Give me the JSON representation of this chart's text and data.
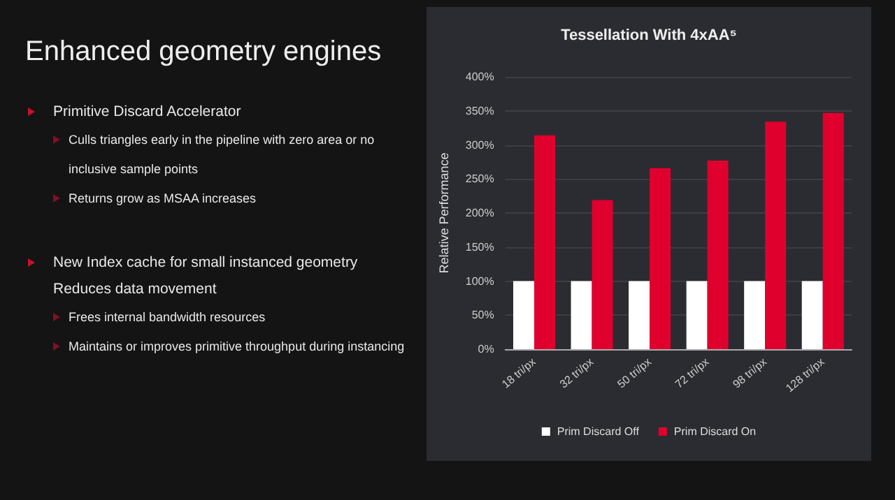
{
  "chart_data": {
    "type": "bar",
    "title": "Tessellation With 4xAA⁵",
    "ylabel": "Relative Performance",
    "categories": [
      "18 tri/px",
      "32 tri/px",
      "50 tri/px",
      "72 tri/px",
      "98 tri/px",
      "128 tri/px"
    ],
    "series": [
      {
        "name": "Prim Discard Off",
        "color": "#ffffff",
        "values": [
          100,
          100,
          100,
          100,
          100,
          100
        ]
      },
      {
        "name": "Prim Discard On",
        "color": "#e0002e",
        "values": [
          314,
          219,
          266,
          277,
          334,
          347
        ]
      }
    ],
    "ylim": [
      0,
      400
    ],
    "yticks": [
      {
        "value": 0,
        "label": "0%"
      },
      {
        "value": 50,
        "label": "50%"
      },
      {
        "value": 100,
        "label": "100%"
      },
      {
        "value": 150,
        "label": "150%"
      },
      {
        "value": 200,
        "label": "200%"
      },
      {
        "value": 250,
        "label": "250%"
      },
      {
        "value": 300,
        "label": "300%"
      },
      {
        "value": 350,
        "label": "350%"
      },
      {
        "value": 400,
        "label": "400%"
      }
    ],
    "grid": "y",
    "legend": "bottom",
    "annotations": [
      "Enhanced geometry engines",
      "Primitive Discard Accelerator",
      "Culls triangles early in the pipeline with zero area or no inclusive sample points",
      "Returns grow as MSAA increases",
      "New Index cache for small instanced geometry",
      "Reduces data movement",
      "Frees internal bandwidth resources",
      "Maintains or  improves primitive throughput during instancing"
    ]
  }
}
